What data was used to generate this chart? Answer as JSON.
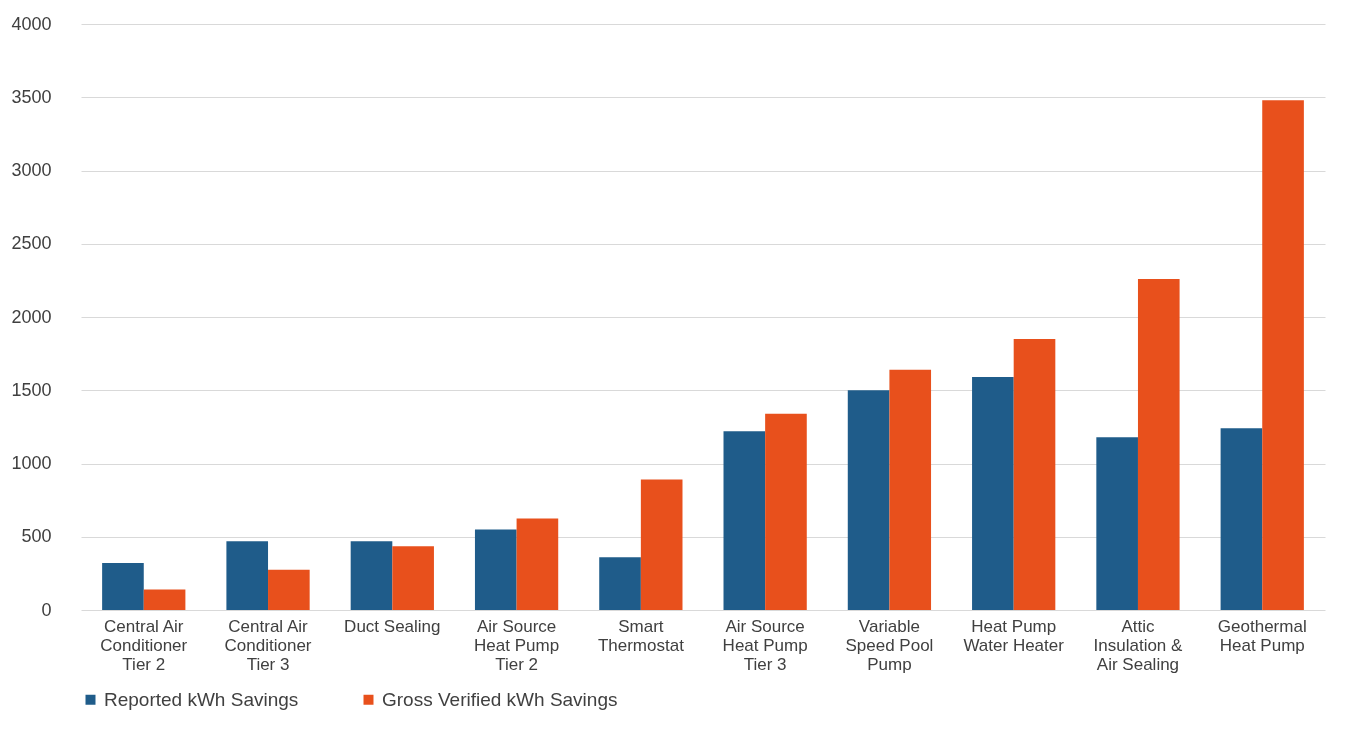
{
  "chart_data": {
    "type": "bar",
    "categories": [
      "Central Air\nConditioner\nTier 2",
      "Central Air\nConditioner\nTier 3",
      "Duct Sealing",
      "Air Source\nHeat Pump\nTier 2",
      "Smart\nThermostat",
      "Air Source\nHeat Pump\nTier 3",
      "Variable\nSpeed Pool\nPump",
      "Heat Pump\nWater Heater",
      "Attic\nInsulation &\nAir Sealing",
      "Geothermal\nHeat Pump"
    ],
    "series": [
      {
        "name": "Reported kWh Savings",
        "color": "#1f5c8a",
        "values": [
          320,
          470,
          470,
          550,
          360,
          1220,
          1500,
          1590,
          1180,
          1240
        ]
      },
      {
        "name": "Gross Verified kWh Savings",
        "color": "#e8501c",
        "values": [
          140,
          275,
          435,
          625,
          890,
          1340,
          1640,
          1850,
          2260,
          3480
        ]
      }
    ],
    "ylim": [
      0,
      4000
    ],
    "yticks": [
      0,
      500,
      1000,
      1500,
      2000,
      2500,
      3000,
      3500,
      4000
    ],
    "grid": "y",
    "legend": "bottom"
  }
}
